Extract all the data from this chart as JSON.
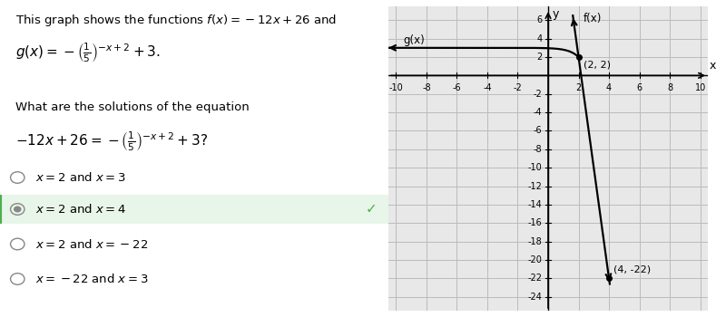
{
  "xlim": [
    -10.5,
    10.5
  ],
  "ylim": [
    -25.5,
    7.5
  ],
  "xticks": [
    -10,
    -8,
    -6,
    -4,
    -2,
    2,
    4,
    6,
    8,
    10
  ],
  "yticks": [
    -24,
    -22,
    -20,
    -18,
    -16,
    -14,
    -12,
    -10,
    -8,
    -6,
    -4,
    -2,
    2,
    4,
    6
  ],
  "intersection_point": [
    2,
    2
  ],
  "point2": [
    4,
    -22
  ],
  "f_label": "f(x)",
  "g_label": "g(x)",
  "line_color": "#000000",
  "grid_color": "#bbbbbb",
  "plot_bg_color": "#e8e8e8",
  "text_lines": [
    "This graph shows the functions $f(x) = -12x + 26$ and",
    "$g(x) = -\\left(\\frac{1}{5}\\right)^{-x+2} + 3.$",
    "",
    "What are the solutions of the equation",
    "$-12x + 26 = -\\left(\\frac{1}{5}\\right)^{-x+2} + 3?$"
  ],
  "answer_lines": [
    [
      "$x = 2$ and $x = 3$",
      false,
      false
    ],
    [
      "$x = 2$ and $x = 4$",
      true,
      true
    ],
    [
      "$x = 2$ and $x = -22$",
      false,
      false
    ],
    [
      "$x = -22$ and $x = 3$",
      false,
      false
    ]
  ]
}
